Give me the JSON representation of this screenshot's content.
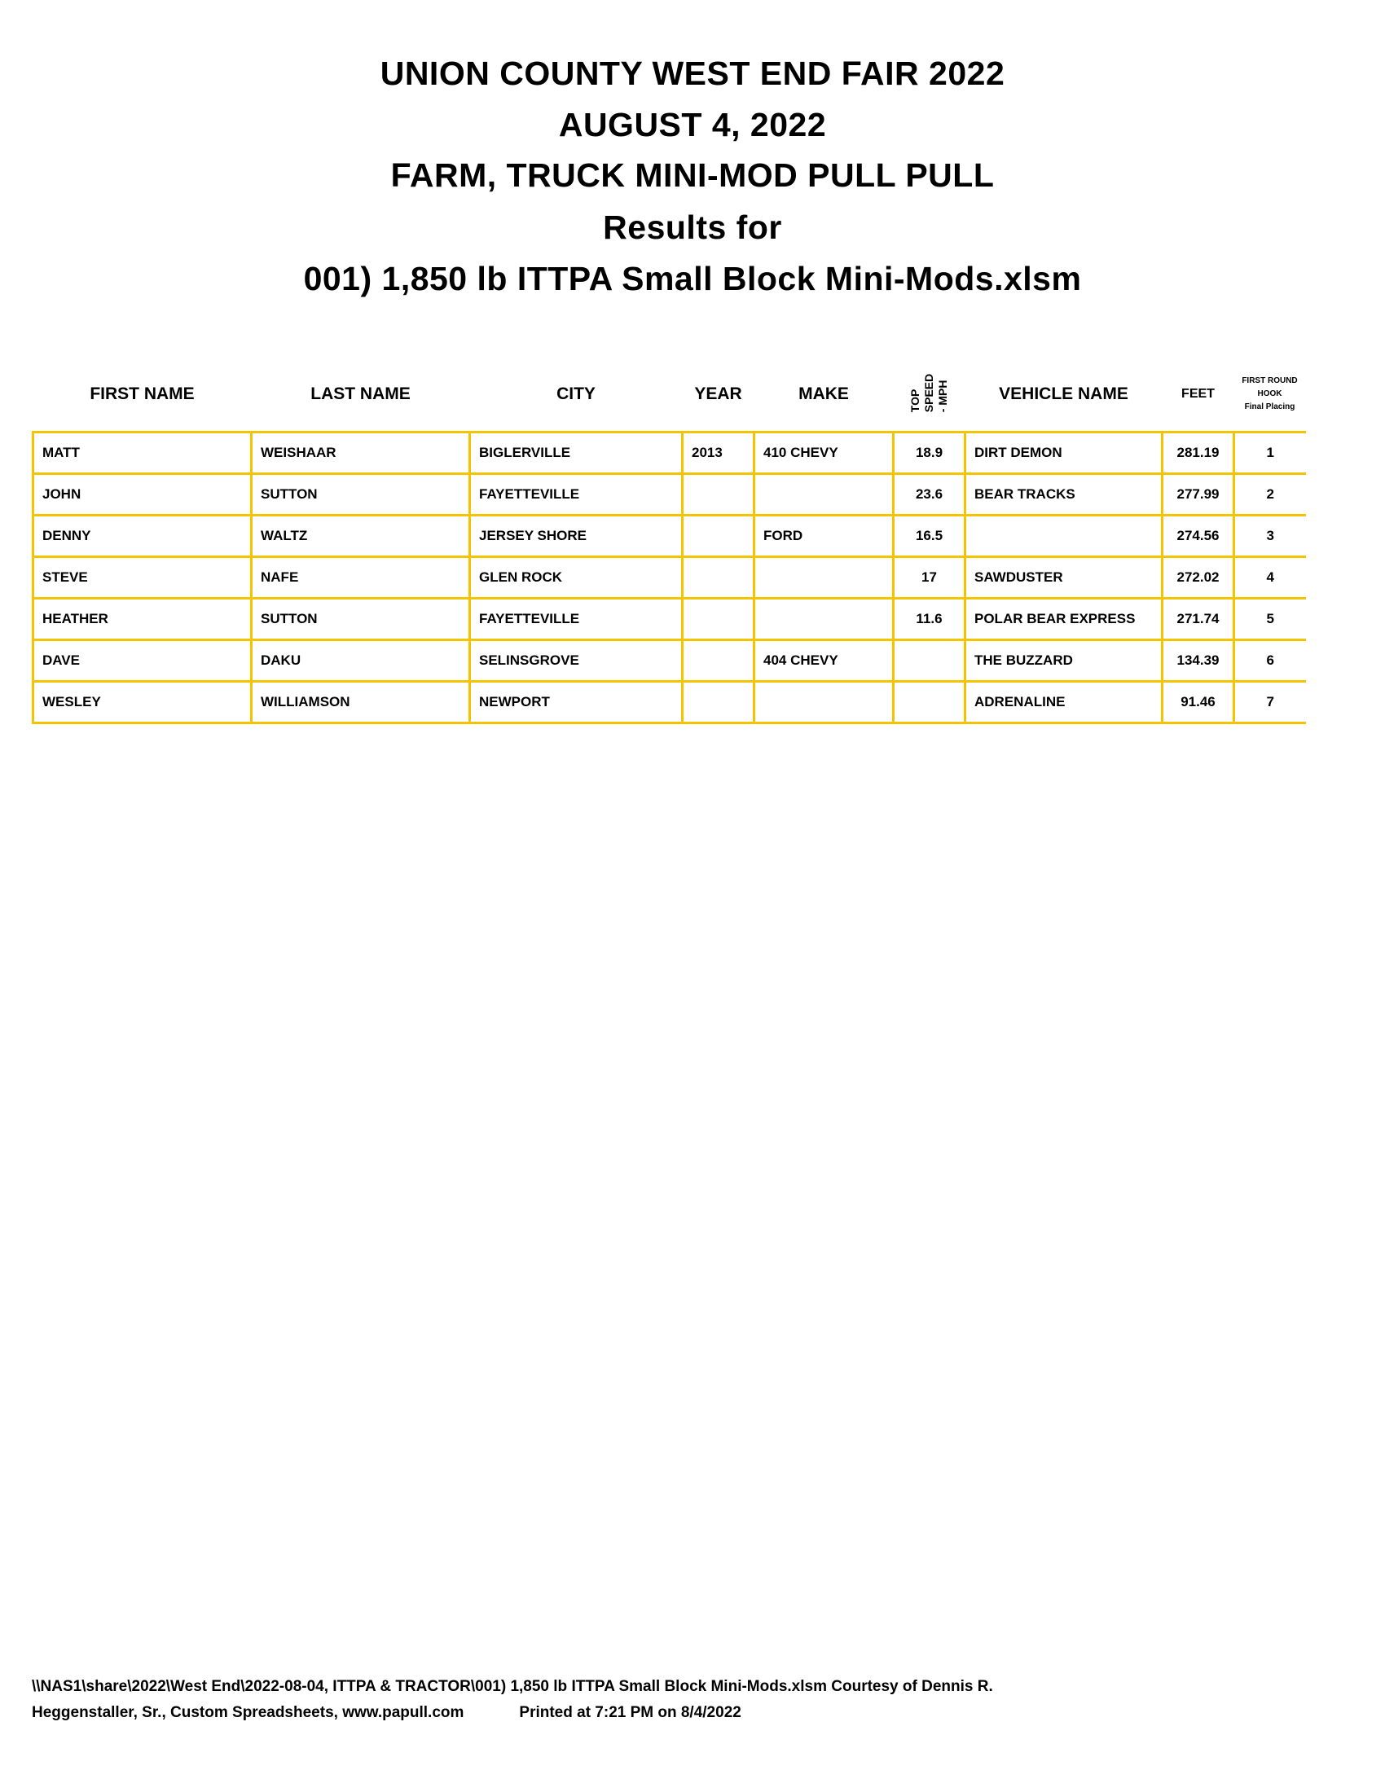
{
  "title_lines": [
    "UNION COUNTY WEST END FAIR 2022",
    "AUGUST 4, 2022",
    "FARM, TRUCK MINI-MOD PULL PULL",
    "Results for",
    "001) 1,850 lb ITTPA Small Block Mini-Mods.xlsm"
  ],
  "table": {
    "headers": {
      "first": "FIRST NAME",
      "last": "LAST NAME",
      "city": "CITY",
      "year": "YEAR",
      "make": "MAKE",
      "speed_1": "TOP",
      "speed_2": "SPEED",
      "speed_3": "- MPH",
      "vehicle": "VEHICLE NAME",
      "feet": "FEET",
      "place_1": "FIRST ROUND",
      "place_2": "HOOK",
      "place_3": "Final Placing"
    },
    "border_color": "#f5c400",
    "rows": [
      [
        "MATT",
        "WEISHAAR",
        "BIGLERVILLE",
        "2013",
        "410 CHEVY",
        "18.9",
        "DIRT DEMON",
        "281.19",
        "1"
      ],
      [
        "JOHN",
        "SUTTON",
        "FAYETTEVILLE",
        "",
        "",
        "23.6",
        "BEAR TRACKS",
        "277.99",
        "2"
      ],
      [
        "DENNY",
        "WALTZ",
        "JERSEY SHORE",
        "",
        "FORD",
        "16.5",
        "",
        "274.56",
        "3"
      ],
      [
        "STEVE",
        "NAFE",
        "GLEN ROCK",
        "",
        "",
        "17",
        "SAWDUSTER",
        "272.02",
        "4"
      ],
      [
        "HEATHER",
        "SUTTON",
        "FAYETTEVILLE",
        "",
        "",
        "11.6",
        "POLAR BEAR EXPRESS",
        "271.74",
        "5"
      ],
      [
        "DAVE",
        "DAKU",
        "SELINSGROVE",
        "",
        "404 CHEVY",
        "",
        "THE BUZZARD",
        "134.39",
        "6"
      ],
      [
        "WESLEY",
        "WILLIAMSON",
        "NEWPORT",
        "",
        "",
        "",
        "ADRENALINE",
        "91.46",
        "7"
      ]
    ]
  },
  "footer": {
    "line1": "\\\\NAS1\\share\\2022\\West End\\2022-08-04, ITTPA & TRACTOR\\001) 1,850 lb ITTPA Small Block Mini-Mods.xlsm  Courtesy of Dennis R.",
    "line2": "Heggenstaller, Sr., Custom Spreadsheets, www.papull.com",
    "printed": "Printed at 7:21 PM on 8/4/2022"
  }
}
